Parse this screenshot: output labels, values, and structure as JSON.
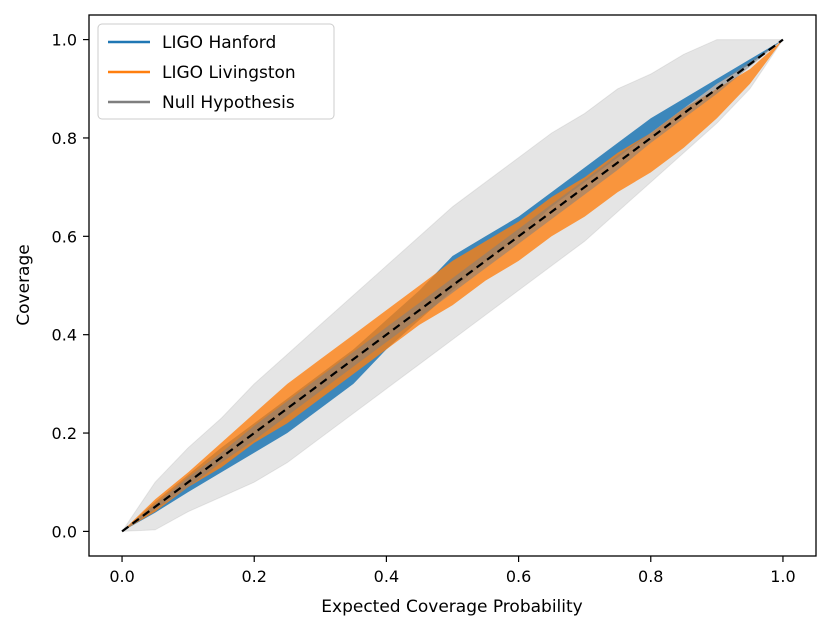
{
  "chart_data": {
    "type": "line",
    "xlabel": "Expected Coverage Probability",
    "ylabel": "Coverage",
    "xlim": [
      -0.05,
      1.05
    ],
    "ylim": [
      -0.05,
      1.05
    ],
    "xticks": [
      "0.0",
      "0.2",
      "0.4",
      "0.6",
      "0.8",
      "1.0"
    ],
    "yticks": [
      "0.0",
      "0.2",
      "0.4",
      "0.6",
      "0.8",
      "1.0"
    ],
    "grid": false,
    "legend": {
      "position": "top-left",
      "entries": [
        "LIGO Hanford",
        "LIGO Livingston",
        "Null Hypothesis"
      ]
    },
    "x": [
      0.0,
      0.05,
      0.1,
      0.15,
      0.2,
      0.25,
      0.3,
      0.35,
      0.4,
      0.45,
      0.5,
      0.55,
      0.6,
      0.65,
      0.7,
      0.75,
      0.8,
      0.85,
      0.9,
      0.95,
      1.0
    ],
    "series": [
      {
        "name": "LIGO Hanford",
        "color": "#1f77b4",
        "lower": [
          0.0,
          0.038,
          0.08,
          0.12,
          0.16,
          0.2,
          0.25,
          0.3,
          0.37,
          0.43,
          0.49,
          0.55,
          0.6,
          0.66,
          0.71,
          0.76,
          0.81,
          0.86,
          0.91,
          0.95,
          1.0
        ],
        "upper": [
          0.0,
          0.06,
          0.115,
          0.17,
          0.22,
          0.27,
          0.32,
          0.37,
          0.43,
          0.49,
          0.56,
          0.6,
          0.64,
          0.69,
          0.74,
          0.79,
          0.84,
          0.88,
          0.92,
          0.96,
          1.0
        ]
      },
      {
        "name": "LIGO Livingston",
        "color": "#ff7f0e",
        "lower": [
          0.0,
          0.04,
          0.09,
          0.13,
          0.18,
          0.22,
          0.27,
          0.32,
          0.37,
          0.42,
          0.46,
          0.51,
          0.55,
          0.6,
          0.64,
          0.69,
          0.73,
          0.78,
          0.84,
          0.91,
          1.0
        ],
        "upper": [
          0.0,
          0.065,
          0.12,
          0.18,
          0.24,
          0.3,
          0.35,
          0.4,
          0.45,
          0.5,
          0.55,
          0.59,
          0.63,
          0.68,
          0.72,
          0.77,
          0.81,
          0.86,
          0.9,
          0.94,
          1.0
        ]
      },
      {
        "name": "Null Hypothesis",
        "color": "#7f7f7f",
        "lower": [
          0.0,
          0.045,
          0.09,
          0.14,
          0.185,
          0.235,
          0.285,
          0.335,
          0.385,
          0.435,
          0.485,
          0.535,
          0.585,
          0.635,
          0.685,
          0.735,
          0.79,
          0.84,
          0.89,
          0.945,
          1.0
        ],
        "upper": [
          0.0,
          0.055,
          0.11,
          0.16,
          0.215,
          0.265,
          0.315,
          0.365,
          0.415,
          0.465,
          0.515,
          0.565,
          0.615,
          0.665,
          0.715,
          0.765,
          0.81,
          0.86,
          0.91,
          0.955,
          1.0
        ],
        "outer_lower": [
          0.0,
          0.003,
          0.04,
          0.07,
          0.1,
          0.14,
          0.19,
          0.24,
          0.29,
          0.34,
          0.39,
          0.44,
          0.49,
          0.54,
          0.59,
          0.65,
          0.71,
          0.77,
          0.83,
          0.9,
          1.0
        ],
        "outer_upper": [
          0.0,
          0.1,
          0.17,
          0.23,
          0.3,
          0.36,
          0.42,
          0.48,
          0.54,
          0.6,
          0.66,
          0.71,
          0.76,
          0.81,
          0.85,
          0.9,
          0.93,
          0.97,
          1.0,
          1.0,
          1.0
        ]
      }
    ],
    "reference_line": {
      "style": "dashed",
      "color": "#000000",
      "x": [
        0.0,
        1.0
      ],
      "y": [
        0.0,
        1.0
      ]
    }
  }
}
